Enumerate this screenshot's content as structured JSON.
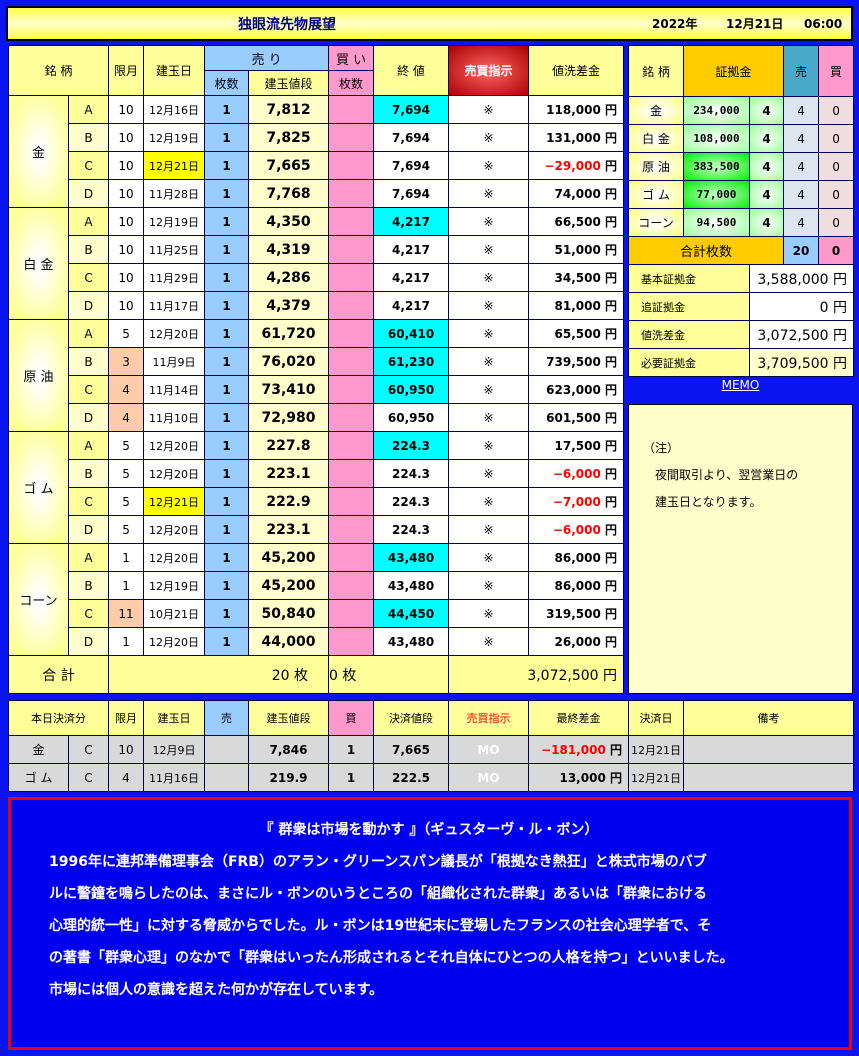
{
  "header": {
    "title": "独眼流先物展望",
    "year": "2022年",
    "date": "12月21日",
    "time": "06:00"
  },
  "main": {
    "headers": {
      "brand": "銘 柄",
      "month": "限月",
      "entry_date": "建玉日",
      "sell": "売 り",
      "buy": "買 い",
      "sell_qty": "枚数",
      "entry_price": "建玉値段",
      "buy_qty": "枚数",
      "close": "終 値",
      "instruction": "売買指示",
      "mtm": "値洗差金"
    },
    "groups": [
      {
        "name": "金",
        "rows": [
          {
            "c": "A",
            "m": "10",
            "d": "12月16日",
            "q": "1",
            "p": "7,812",
            "cl": "7,694",
            "cl_hl": true,
            "i": "※",
            "v": "118,000",
            "neg": false
          },
          {
            "c": "B",
            "m": "10",
            "d": "12月19日",
            "q": "1",
            "p": "7,825",
            "cl": "7,694",
            "i": "※",
            "v": "131,000",
            "neg": false
          },
          {
            "c": "C",
            "m": "10",
            "d": "12月21日",
            "d_hl": true,
            "q": "1",
            "p": "7,665",
            "cl": "7,694",
            "i": "※",
            "v": "−29,000",
            "neg": true
          },
          {
            "c": "D",
            "m": "10",
            "d": "11月28日",
            "q": "1",
            "p": "7,768",
            "cl": "7,694",
            "i": "※",
            "v": "74,000",
            "neg": false
          }
        ]
      },
      {
        "name": "白 金",
        "rows": [
          {
            "c": "A",
            "m": "10",
            "d": "12月19日",
            "q": "1",
            "p": "4,350",
            "cl": "4,217",
            "cl_hl": true,
            "i": "※",
            "v": "66,500"
          },
          {
            "c": "B",
            "m": "10",
            "d": "11月25日",
            "q": "1",
            "p": "4,319",
            "cl": "4,217",
            "i": "※",
            "v": "51,000"
          },
          {
            "c": "C",
            "m": "10",
            "d": "11月29日",
            "q": "1",
            "p": "4,286",
            "cl": "4,217",
            "i": "※",
            "v": "34,500"
          },
          {
            "c": "D",
            "m": "10",
            "d": "11月17日",
            "q": "1",
            "p": "4,379",
            "cl": "4,217",
            "i": "※",
            "v": "81,000"
          }
        ]
      },
      {
        "name": "原 油",
        "rows": [
          {
            "c": "A",
            "m": "5",
            "d": "12月20日",
            "q": "1",
            "p": "61,720",
            "cl": "60,410",
            "cl_hl": true,
            "i": "※",
            "v": "65,500"
          },
          {
            "c": "B",
            "m": "3",
            "m_hl": true,
            "d": "11月9日",
            "q": "1",
            "p": "76,020",
            "cl": "61,230",
            "cl_hl": true,
            "i": "※",
            "v": "739,500"
          },
          {
            "c": "C",
            "m": "4",
            "m_hl": true,
            "d": "11月14日",
            "q": "1",
            "p": "73,410",
            "cl": "60,950",
            "cl_hl": true,
            "i": "※",
            "v": "623,000"
          },
          {
            "c": "D",
            "m": "4",
            "m_hl": true,
            "d": "11月10日",
            "q": "1",
            "p": "72,980",
            "cl": "60,950",
            "i": "※",
            "v": "601,500"
          }
        ]
      },
      {
        "name": "ゴ ム",
        "rows": [
          {
            "c": "A",
            "m": "5",
            "d": "12月20日",
            "q": "1",
            "p": "227.8",
            "cl": "224.3",
            "cl_hl": true,
            "i": "※",
            "v": "17,500"
          },
          {
            "c": "B",
            "m": "5",
            "d": "12月20日",
            "q": "1",
            "p": "223.1",
            "cl": "224.3",
            "i": "※",
            "v": "−6,000",
            "neg": true
          },
          {
            "c": "C",
            "m": "5",
            "d": "12月21日",
            "d_hl": true,
            "q": "1",
            "p": "222.9",
            "cl": "224.3",
            "i": "※",
            "v": "−7,000",
            "neg": true
          },
          {
            "c": "D",
            "m": "5",
            "d": "12月20日",
            "q": "1",
            "p": "223.1",
            "cl": "224.3",
            "i": "※",
            "v": "−6,000",
            "neg": true
          }
        ]
      },
      {
        "name": "コーン",
        "rows": [
          {
            "c": "A",
            "m": "1",
            "d": "12月20日",
            "q": "1",
            "p": "45,200",
            "cl": "43,480",
            "cl_hl": true,
            "i": "※",
            "v": "86,000"
          },
          {
            "c": "B",
            "m": "1",
            "d": "12月19日",
            "q": "1",
            "p": "45,200",
            "cl": "43,480",
            "i": "※",
            "v": "86,000"
          },
          {
            "c": "C",
            "m": "11",
            "m_hl": true,
            "d": "10月21日",
            "q": "1",
            "p": "50,840",
            "cl": "44,450",
            "cl_hl": true,
            "i": "※",
            "v": "319,500"
          },
          {
            "c": "D",
            "m": "1",
            "d": "12月20日",
            "q": "1",
            "p": "44,000",
            "cl": "43,480",
            "i": "※",
            "v": "26,000"
          }
        ]
      }
    ],
    "yen": "円",
    "total": {
      "label": "合 計",
      "sell": "20 枚",
      "buy": "0 枚",
      "mtm": "3,072,500"
    }
  },
  "margin": {
    "headers": {
      "brand": "銘 柄",
      "margin": "証拠金",
      "sell": "売",
      "buy": "買"
    },
    "rows": [
      {
        "name": "金",
        "amount": "234,000",
        "n": "4",
        "sell": "4",
        "buy": "0"
      },
      {
        "name": "白 金",
        "amount": "108,000",
        "n": "4",
        "sell": "4",
        "buy": "0"
      },
      {
        "name": "原 油",
        "amount": "383,500",
        "n": "4",
        "sell": "4",
        "buy": "0",
        "strong": true
      },
      {
        "name": "ゴ ム",
        "amount": "77,000",
        "n": "4",
        "sell": "4",
        "buy": "0",
        "strong": true
      },
      {
        "name": "コーン",
        "amount": "94,500",
        "n": "4",
        "sell": "4",
        "buy": "0"
      }
    ],
    "total_label": "合計枚数",
    "total_sell": "20",
    "total_buy": "0",
    "summary": [
      {
        "label": "基本証拠金",
        "value": "3,588,000 円"
      },
      {
        "label": "追証拠金",
        "value": "0 円"
      },
      {
        "label": "値洗差金",
        "value": "3,072,500 円"
      },
      {
        "label": "必要証拠金",
        "value": "3,709,500 円"
      }
    ]
  },
  "memo": {
    "link": "MEMO",
    "lines": [
      "（注）",
      "　夜間取引より、翌営業日の",
      "　建玉日となります。"
    ]
  },
  "settled": {
    "headers": [
      "本日決済分",
      "限月",
      "建玉日",
      "売",
      "建玉値段",
      "買",
      "決済値段",
      "売買指示",
      "最終差金",
      "決済日",
      "備考"
    ],
    "rows": [
      {
        "name": "金",
        "c": "C",
        "m": "10",
        "d": "12月9日",
        "s": "",
        "p": "7,846",
        "b": "1",
        "sp": "7,665",
        "i": "MO",
        "v": "−181,000",
        "neg": true,
        "yen": "円",
        "sd": "12月21日",
        "note": ""
      },
      {
        "name": "ゴ ム",
        "c": "C",
        "m": "4",
        "d": "11月16日",
        "s": "",
        "p": "219.9",
        "b": "1",
        "sp": "222.5",
        "i": "MO",
        "v": "13,000",
        "neg": false,
        "yen": "円",
        "sd": "12月21日",
        "note": ""
      }
    ]
  },
  "quote": {
    "title": "『 群衆は市場を動かす 』（ギュスターヴ・ル・ボン）",
    "lines": [
      "1996年に連邦準備理事会（FRB）のアラン・グリーンスパン議長が「根拠なき熱狂」と株式市場のバブ",
      "ルに警鐘を鳴らしたのは、まさにル・ボンのいうところの「組織化された群衆」あるいは「群衆における",
      "心理的統一性」に対する脅威からでした。ル・ボンは19世紀末に登場したフランスの社会心理学者で、そ",
      "の著書「群衆心理」のなかで「群衆はいったん形成されるとそれ自体にひとつの人格を持つ」といいました。",
      "市場には個人の意識を超えた何かが存在しています。"
    ]
  }
}
